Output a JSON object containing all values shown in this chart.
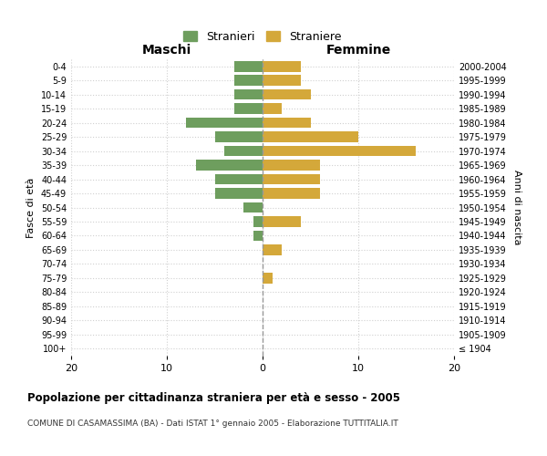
{
  "age_groups": [
    "100+",
    "95-99",
    "90-94",
    "85-89",
    "80-84",
    "75-79",
    "70-74",
    "65-69",
    "60-64",
    "55-59",
    "50-54",
    "45-49",
    "40-44",
    "35-39",
    "30-34",
    "25-29",
    "20-24",
    "15-19",
    "10-14",
    "5-9",
    "0-4"
  ],
  "birth_years": [
    "≤ 1904",
    "1905-1909",
    "1910-1914",
    "1915-1919",
    "1920-1924",
    "1925-1929",
    "1930-1934",
    "1935-1939",
    "1940-1944",
    "1945-1949",
    "1950-1954",
    "1955-1959",
    "1960-1964",
    "1965-1969",
    "1970-1974",
    "1975-1979",
    "1980-1984",
    "1985-1989",
    "1990-1994",
    "1995-1999",
    "2000-2004"
  ],
  "males": [
    0,
    0,
    0,
    0,
    0,
    0,
    0,
    0,
    1,
    1,
    2,
    5,
    5,
    7,
    4,
    5,
    8,
    3,
    3,
    3,
    3
  ],
  "females": [
    0,
    0,
    0,
    0,
    0,
    1,
    0,
    2,
    0,
    4,
    0,
    6,
    6,
    6,
    16,
    10,
    5,
    2,
    5,
    4,
    4
  ],
  "color_males": "#6e9e5e",
  "color_females": "#d4a83a",
  "title": "Popolazione per cittadinanza straniera per età e sesso - 2005",
  "subtitle": "COMUNE DI CASAMASSIMA (BA) - Dati ISTAT 1° gennaio 2005 - Elaborazione TUTTITALIA.IT",
  "xlabel_left": "Maschi",
  "xlabel_right": "Femmine",
  "ylabel_left": "Fasce di età",
  "ylabel_right": "Anni di nascita",
  "legend_males": "Stranieri",
  "legend_females": "Straniere",
  "xlim": 20,
  "background_color": "#ffffff",
  "grid_color": "#d0d0d0"
}
